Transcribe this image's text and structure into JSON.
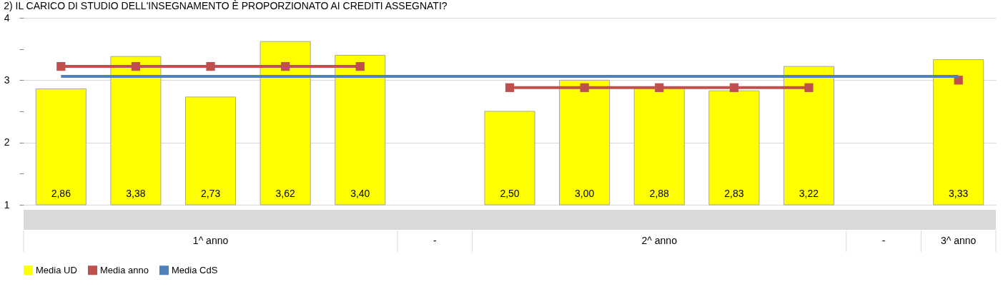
{
  "chart_data": {
    "type": "bar",
    "title": "2) IL CARICO DI STUDIO DELL'INSEGNAMENTO È PROPORZIONATO AI CREDITI ASSEGNATI?",
    "categories": [
      null,
      null,
      null,
      null,
      null,
      null,
      null,
      null,
      null,
      null,
      null,
      null,
      null
    ],
    "series": [
      {
        "name": "Media UD",
        "color": "#ffff00",
        "values": [
          2.86,
          3.38,
          2.73,
          3.62,
          3.4,
          null,
          2.5,
          3.0,
          2.88,
          2.83,
          3.22,
          null,
          3.33
        ],
        "value_labels": [
          "2,86",
          "3,38",
          "2,73",
          "3,62",
          "3,40",
          null,
          "2,50",
          "3,00",
          "2,88",
          "2,83",
          "3,22",
          null,
          "3,33"
        ]
      },
      {
        "name": "Media anno",
        "type": "line",
        "color": "#c0504d",
        "marker": "square",
        "values": [
          3.22,
          3.22,
          3.22,
          3.22,
          3.22,
          null,
          2.88,
          2.88,
          2.88,
          2.88,
          2.88,
          null,
          3.0
        ]
      },
      {
        "name": "Media CdS",
        "type": "line",
        "color": "#4f81bd",
        "marker": "none",
        "values": [
          3.06,
          3.06,
          3.06,
          3.06,
          3.06,
          3.06,
          3.06,
          3.06,
          3.06,
          3.06,
          3.06,
          3.06,
          3.06
        ]
      }
    ],
    "ylim": [
      1,
      4
    ],
    "yticks": [
      1,
      {
        "value": 1.5,
        "label": null
      },
      2,
      {
        "value": 2.5,
        "label": null
      },
      3,
      {
        "value": 3.5,
        "label": null
      },
      4
    ],
    "grid": "y",
    "legend": "bottom",
    "tick_labels": "y",
    "annotations": [
      "1^ anno",
      "-",
      "2^ anno",
      "-",
      "3^ anno"
    ]
  }
}
